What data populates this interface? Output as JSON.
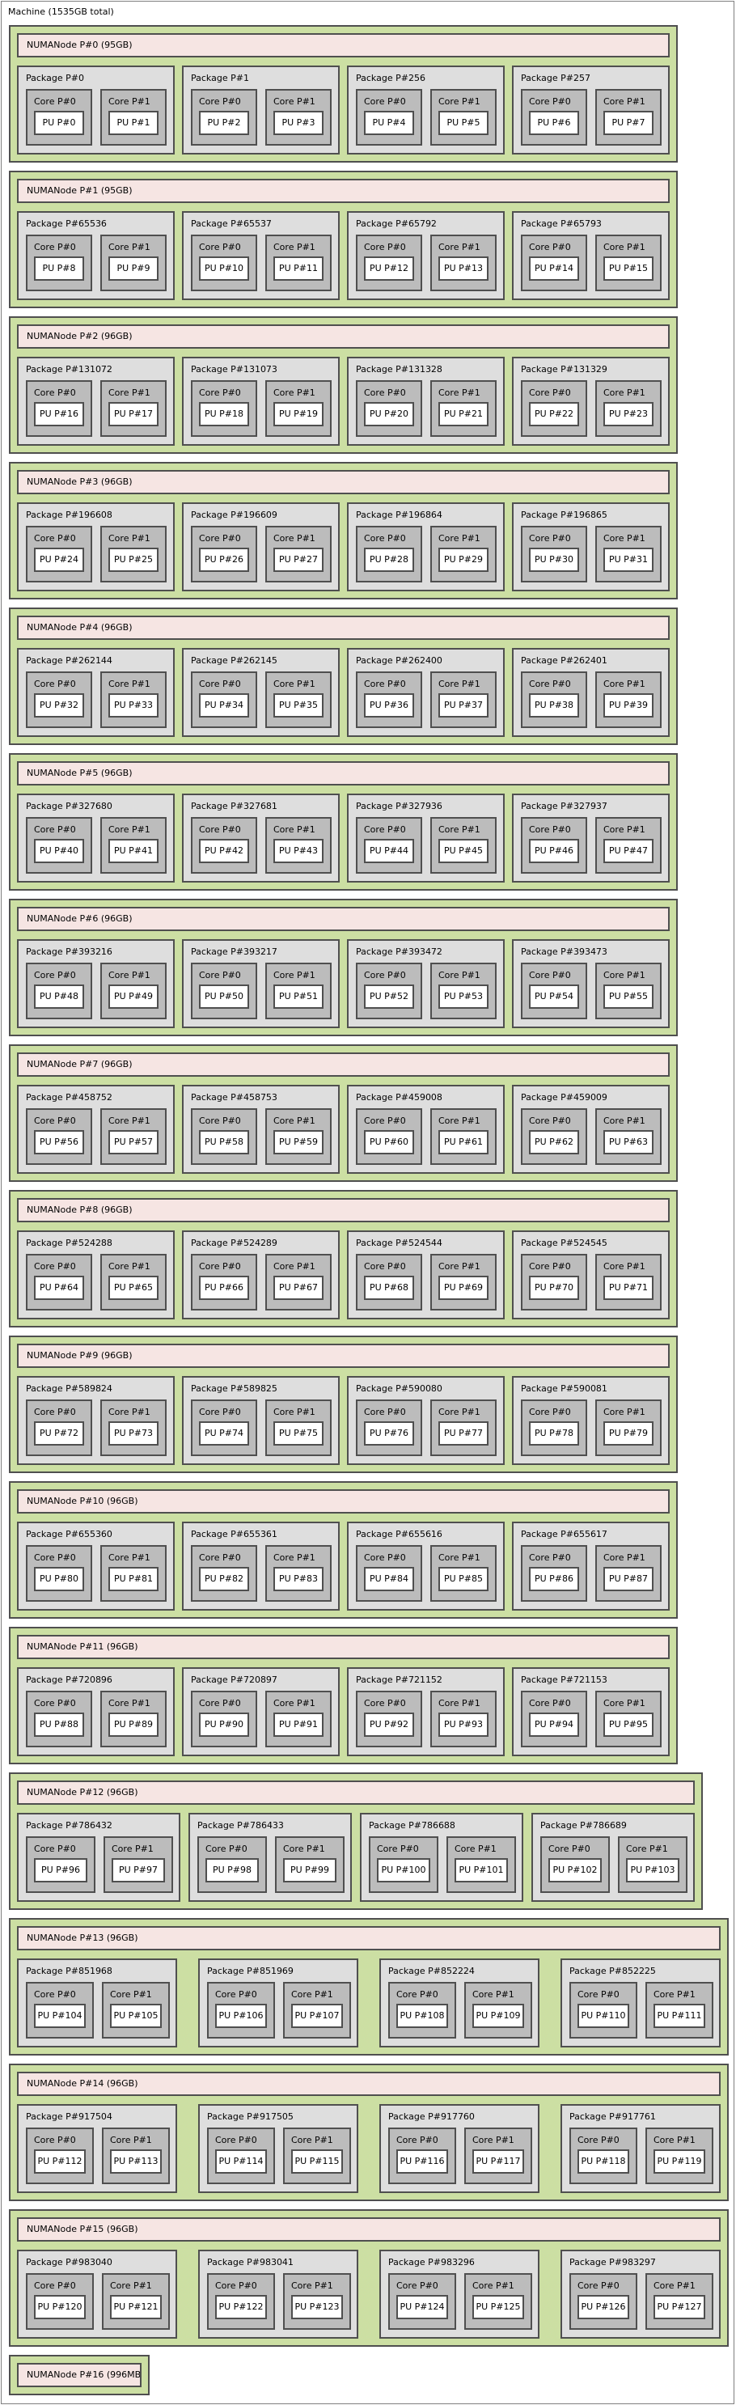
{
  "machine": {
    "label": "Machine (1535GB total)"
  },
  "colors": {
    "numa_group_green": "#ccdfa3",
    "numanode_pink": "#f6e5e3",
    "package_gray": "#dedede",
    "core_gray": "#bcbcbc",
    "pu_white": "#ffffff",
    "border_dark": "#4f4f4f",
    "machine_border": "#7f7f7f"
  },
  "numa_nodes": [
    {
      "label": "NUMANode P#0 (95GB)",
      "packages": [
        {
          "label": "Package P#0",
          "cores": [
            {
              "label": "Core P#0",
              "pu": "PU P#0"
            },
            {
              "label": "Core P#1",
              "pu": "PU P#1"
            }
          ]
        },
        {
          "label": "Package P#1",
          "cores": [
            {
              "label": "Core P#0",
              "pu": "PU P#2"
            },
            {
              "label": "Core P#1",
              "pu": "PU P#3"
            }
          ]
        },
        {
          "label": "Package P#256",
          "cores": [
            {
              "label": "Core P#0",
              "pu": "PU P#4"
            },
            {
              "label": "Core P#1",
              "pu": "PU P#5"
            }
          ]
        },
        {
          "label": "Package P#257",
          "cores": [
            {
              "label": "Core P#0",
              "pu": "PU P#6"
            },
            {
              "label": "Core P#1",
              "pu": "PU P#7"
            }
          ]
        }
      ]
    },
    {
      "label": "NUMANode P#1 (95GB)",
      "packages": [
        {
          "label": "Package P#65536",
          "cores": [
            {
              "label": "Core P#0",
              "pu": "PU P#8"
            },
            {
              "label": "Core P#1",
              "pu": "PU P#9"
            }
          ]
        },
        {
          "label": "Package P#65537",
          "cores": [
            {
              "label": "Core P#0",
              "pu": "PU P#10"
            },
            {
              "label": "Core P#1",
              "pu": "PU P#11"
            }
          ]
        },
        {
          "label": "Package P#65792",
          "cores": [
            {
              "label": "Core P#0",
              "pu": "PU P#12"
            },
            {
              "label": "Core P#1",
              "pu": "PU P#13"
            }
          ]
        },
        {
          "label": "Package P#65793",
          "cores": [
            {
              "label": "Core P#0",
              "pu": "PU P#14"
            },
            {
              "label": "Core P#1",
              "pu": "PU P#15"
            }
          ]
        }
      ]
    },
    {
      "label": "NUMANode P#2 (96GB)",
      "packages": [
        {
          "label": "Package P#131072",
          "cores": [
            {
              "label": "Core P#0",
              "pu": "PU P#16"
            },
            {
              "label": "Core P#1",
              "pu": "PU P#17"
            }
          ]
        },
        {
          "label": "Package P#131073",
          "cores": [
            {
              "label": "Core P#0",
              "pu": "PU P#18"
            },
            {
              "label": "Core P#1",
              "pu": "PU P#19"
            }
          ]
        },
        {
          "label": "Package P#131328",
          "cores": [
            {
              "label": "Core P#0",
              "pu": "PU P#20"
            },
            {
              "label": "Core P#1",
              "pu": "PU P#21"
            }
          ]
        },
        {
          "label": "Package P#131329",
          "cores": [
            {
              "label": "Core P#0",
              "pu": "PU P#22"
            },
            {
              "label": "Core P#1",
              "pu": "PU P#23"
            }
          ]
        }
      ]
    },
    {
      "label": "NUMANode P#3 (96GB)",
      "packages": [
        {
          "label": "Package P#196608",
          "cores": [
            {
              "label": "Core P#0",
              "pu": "PU P#24"
            },
            {
              "label": "Core P#1",
              "pu": "PU P#25"
            }
          ]
        },
        {
          "label": "Package P#196609",
          "cores": [
            {
              "label": "Core P#0",
              "pu": "PU P#26"
            },
            {
              "label": "Core P#1",
              "pu": "PU P#27"
            }
          ]
        },
        {
          "label": "Package P#196864",
          "cores": [
            {
              "label": "Core P#0",
              "pu": "PU P#28"
            },
            {
              "label": "Core P#1",
              "pu": "PU P#29"
            }
          ]
        },
        {
          "label": "Package P#196865",
          "cores": [
            {
              "label": "Core P#0",
              "pu": "PU P#30"
            },
            {
              "label": "Core P#1",
              "pu": "PU P#31"
            }
          ]
        }
      ]
    },
    {
      "label": "NUMANode P#4 (96GB)",
      "packages": [
        {
          "label": "Package P#262144",
          "cores": [
            {
              "label": "Core P#0",
              "pu": "PU P#32"
            },
            {
              "label": "Core P#1",
              "pu": "PU P#33"
            }
          ]
        },
        {
          "label": "Package P#262145",
          "cores": [
            {
              "label": "Core P#0",
              "pu": "PU P#34"
            },
            {
              "label": "Core P#1",
              "pu": "PU P#35"
            }
          ]
        },
        {
          "label": "Package P#262400",
          "cores": [
            {
              "label": "Core P#0",
              "pu": "PU P#36"
            },
            {
              "label": "Core P#1",
              "pu": "PU P#37"
            }
          ]
        },
        {
          "label": "Package P#262401",
          "cores": [
            {
              "label": "Core P#0",
              "pu": "PU P#38"
            },
            {
              "label": "Core P#1",
              "pu": "PU P#39"
            }
          ]
        }
      ]
    },
    {
      "label": "NUMANode P#5 (96GB)",
      "packages": [
        {
          "label": "Package P#327680",
          "cores": [
            {
              "label": "Core P#0",
              "pu": "PU P#40"
            },
            {
              "label": "Core P#1",
              "pu": "PU P#41"
            }
          ]
        },
        {
          "label": "Package P#327681",
          "cores": [
            {
              "label": "Core P#0",
              "pu": "PU P#42"
            },
            {
              "label": "Core P#1",
              "pu": "PU P#43"
            }
          ]
        },
        {
          "label": "Package P#327936",
          "cores": [
            {
              "label": "Core P#0",
              "pu": "PU P#44"
            },
            {
              "label": "Core P#1",
              "pu": "PU P#45"
            }
          ]
        },
        {
          "label": "Package P#327937",
          "cores": [
            {
              "label": "Core P#0",
              "pu": "PU P#46"
            },
            {
              "label": "Core P#1",
              "pu": "PU P#47"
            }
          ]
        }
      ]
    },
    {
      "label": "NUMANode P#6 (96GB)",
      "packages": [
        {
          "label": "Package P#393216",
          "cores": [
            {
              "label": "Core P#0",
              "pu": "PU P#48"
            },
            {
              "label": "Core P#1",
              "pu": "PU P#49"
            }
          ]
        },
        {
          "label": "Package P#393217",
          "cores": [
            {
              "label": "Core P#0",
              "pu": "PU P#50"
            },
            {
              "label": "Core P#1",
              "pu": "PU P#51"
            }
          ]
        },
        {
          "label": "Package P#393472",
          "cores": [
            {
              "label": "Core P#0",
              "pu": "PU P#52"
            },
            {
              "label": "Core P#1",
              "pu": "PU P#53"
            }
          ]
        },
        {
          "label": "Package P#393473",
          "cores": [
            {
              "label": "Core P#0",
              "pu": "PU P#54"
            },
            {
              "label": "Core P#1",
              "pu": "PU P#55"
            }
          ]
        }
      ]
    },
    {
      "label": "NUMANode P#7 (96GB)",
      "packages": [
        {
          "label": "Package P#458752",
          "cores": [
            {
              "label": "Core P#0",
              "pu": "PU P#56"
            },
            {
              "label": "Core P#1",
              "pu": "PU P#57"
            }
          ]
        },
        {
          "label": "Package P#458753",
          "cores": [
            {
              "label": "Core P#0",
              "pu": "PU P#58"
            },
            {
              "label": "Core P#1",
              "pu": "PU P#59"
            }
          ]
        },
        {
          "label": "Package P#459008",
          "cores": [
            {
              "label": "Core P#0",
              "pu": "PU P#60"
            },
            {
              "label": "Core P#1",
              "pu": "PU P#61"
            }
          ]
        },
        {
          "label": "Package P#459009",
          "cores": [
            {
              "label": "Core P#0",
              "pu": "PU P#62"
            },
            {
              "label": "Core P#1",
              "pu": "PU P#63"
            }
          ]
        }
      ]
    },
    {
      "label": "NUMANode P#8 (96GB)",
      "packages": [
        {
          "label": "Package P#524288",
          "cores": [
            {
              "label": "Core P#0",
              "pu": "PU P#64"
            },
            {
              "label": "Core P#1",
              "pu": "PU P#65"
            }
          ]
        },
        {
          "label": "Package P#524289",
          "cores": [
            {
              "label": "Core P#0",
              "pu": "PU P#66"
            },
            {
              "label": "Core P#1",
              "pu": "PU P#67"
            }
          ]
        },
        {
          "label": "Package P#524544",
          "cores": [
            {
              "label": "Core P#0",
              "pu": "PU P#68"
            },
            {
              "label": "Core P#1",
              "pu": "PU P#69"
            }
          ]
        },
        {
          "label": "Package P#524545",
          "cores": [
            {
              "label": "Core P#0",
              "pu": "PU P#70"
            },
            {
              "label": "Core P#1",
              "pu": "PU P#71"
            }
          ]
        }
      ]
    },
    {
      "label": "NUMANode P#9 (96GB)",
      "packages": [
        {
          "label": "Package P#589824",
          "cores": [
            {
              "label": "Core P#0",
              "pu": "PU P#72"
            },
            {
              "label": "Core P#1",
              "pu": "PU P#73"
            }
          ]
        },
        {
          "label": "Package P#589825",
          "cores": [
            {
              "label": "Core P#0",
              "pu": "PU P#74"
            },
            {
              "label": "Core P#1",
              "pu": "PU P#75"
            }
          ]
        },
        {
          "label": "Package P#590080",
          "cores": [
            {
              "label": "Core P#0",
              "pu": "PU P#76"
            },
            {
              "label": "Core P#1",
              "pu": "PU P#77"
            }
          ]
        },
        {
          "label": "Package P#590081",
          "cores": [
            {
              "label": "Core P#0",
              "pu": "PU P#78"
            },
            {
              "label": "Core P#1",
              "pu": "PU P#79"
            }
          ]
        }
      ]
    },
    {
      "label": "NUMANode P#10 (96GB)",
      "packages": [
        {
          "label": "Package P#655360",
          "cores": [
            {
              "label": "Core P#0",
              "pu": "PU P#80"
            },
            {
              "label": "Core P#1",
              "pu": "PU P#81"
            }
          ]
        },
        {
          "label": "Package P#655361",
          "cores": [
            {
              "label": "Core P#0",
              "pu": "PU P#82"
            },
            {
              "label": "Core P#1",
              "pu": "PU P#83"
            }
          ]
        },
        {
          "label": "Package P#655616",
          "cores": [
            {
              "label": "Core P#0",
              "pu": "PU P#84"
            },
            {
              "label": "Core P#1",
              "pu": "PU P#85"
            }
          ]
        },
        {
          "label": "Package P#655617",
          "cores": [
            {
              "label": "Core P#0",
              "pu": "PU P#86"
            },
            {
              "label": "Core P#1",
              "pu": "PU P#87"
            }
          ]
        }
      ]
    },
    {
      "label": "NUMANode P#11 (96GB)",
      "packages": [
        {
          "label": "Package P#720896",
          "cores": [
            {
              "label": "Core P#0",
              "pu": "PU P#88"
            },
            {
              "label": "Core P#1",
              "pu": "PU P#89"
            }
          ]
        },
        {
          "label": "Package P#720897",
          "cores": [
            {
              "label": "Core P#0",
              "pu": "PU P#90"
            },
            {
              "label": "Core P#1",
              "pu": "PU P#91"
            }
          ]
        },
        {
          "label": "Package P#721152",
          "cores": [
            {
              "label": "Core P#0",
              "pu": "PU P#92"
            },
            {
              "label": "Core P#1",
              "pu": "PU P#93"
            }
          ]
        },
        {
          "label": "Package P#721153",
          "cores": [
            {
              "label": "Core P#0",
              "pu": "PU P#94"
            },
            {
              "label": "Core P#1",
              "pu": "PU P#95"
            }
          ]
        }
      ]
    },
    {
      "label": "NUMANode P#12 (96GB)",
      "packages": [
        {
          "label": "Package P#786432",
          "cores": [
            {
              "label": "Core P#0",
              "pu": "PU P#96"
            },
            {
              "label": "Core P#1",
              "pu": "PU P#97"
            }
          ]
        },
        {
          "label": "Package P#786433",
          "cores": [
            {
              "label": "Core P#0",
              "pu": "PU P#98"
            },
            {
              "label": "Core P#1",
              "pu": "PU P#99"
            }
          ]
        },
        {
          "label": "Package P#786688",
          "cores": [
            {
              "label": "Core P#0",
              "pu": "PU P#100"
            },
            {
              "label": "Core P#1",
              "pu": "PU P#101"
            }
          ]
        },
        {
          "label": "Package P#786689",
          "cores": [
            {
              "label": "Core P#0",
              "pu": "PU P#102"
            },
            {
              "label": "Core P#1",
              "pu": "PU P#103"
            }
          ]
        }
      ]
    },
    {
      "label": "NUMANode P#13 (96GB)",
      "packages": [
        {
          "label": "Package P#851968",
          "cores": [
            {
              "label": "Core P#0",
              "pu": "PU P#104"
            },
            {
              "label": "Core P#1",
              "pu": "PU P#105"
            }
          ]
        },
        {
          "label": "Package P#851969",
          "cores": [
            {
              "label": "Core P#0",
              "pu": "PU P#106"
            },
            {
              "label": "Core P#1",
              "pu": "PU P#107"
            }
          ]
        },
        {
          "label": "Package P#852224",
          "cores": [
            {
              "label": "Core P#0",
              "pu": "PU P#108"
            },
            {
              "label": "Core P#1",
              "pu": "PU P#109"
            }
          ]
        },
        {
          "label": "Package P#852225",
          "cores": [
            {
              "label": "Core P#0",
              "pu": "PU P#110"
            },
            {
              "label": "Core P#1",
              "pu": "PU P#111"
            }
          ]
        }
      ]
    },
    {
      "label": "NUMANode P#14 (96GB)",
      "packages": [
        {
          "label": "Package P#917504",
          "cores": [
            {
              "label": "Core P#0",
              "pu": "PU P#112"
            },
            {
              "label": "Core P#1",
              "pu": "PU P#113"
            }
          ]
        },
        {
          "label": "Package P#917505",
          "cores": [
            {
              "label": "Core P#0",
              "pu": "PU P#114"
            },
            {
              "label": "Core P#1",
              "pu": "PU P#115"
            }
          ]
        },
        {
          "label": "Package P#917760",
          "cores": [
            {
              "label": "Core P#0",
              "pu": "PU P#116"
            },
            {
              "label": "Core P#1",
              "pu": "PU P#117"
            }
          ]
        },
        {
          "label": "Package P#917761",
          "cores": [
            {
              "label": "Core P#0",
              "pu": "PU P#118"
            },
            {
              "label": "Core P#1",
              "pu": "PU P#119"
            }
          ]
        }
      ]
    },
    {
      "label": "NUMANode P#15 (96GB)",
      "packages": [
        {
          "label": "Package P#983040",
          "cores": [
            {
              "label": "Core P#0",
              "pu": "PU P#120"
            },
            {
              "label": "Core P#1",
              "pu": "PU P#121"
            }
          ]
        },
        {
          "label": "Package P#983041",
          "cores": [
            {
              "label": "Core P#0",
              "pu": "PU P#122"
            },
            {
              "label": "Core P#1",
              "pu": "PU P#123"
            }
          ]
        },
        {
          "label": "Package P#983296",
          "cores": [
            {
              "label": "Core P#0",
              "pu": "PU P#124"
            },
            {
              "label": "Core P#1",
              "pu": "PU P#125"
            }
          ]
        },
        {
          "label": "Package P#983297",
          "cores": [
            {
              "label": "Core P#0",
              "pu": "PU P#126"
            },
            {
              "label": "Core P#1",
              "pu": "PU P#127"
            }
          ]
        }
      ]
    },
    {
      "label": "NUMANode P#16 (996MB)",
      "packages": []
    }
  ]
}
